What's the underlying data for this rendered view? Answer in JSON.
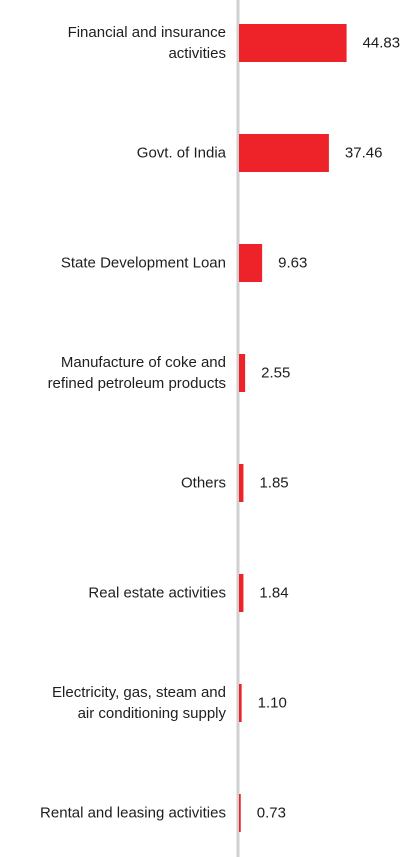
{
  "chart_data": {
    "type": "bar",
    "orientation": "horizontal",
    "categories": [
      [
        "Financial and insurance",
        "activities"
      ],
      [
        "Govt. of India"
      ],
      [
        "State Development Loan"
      ],
      [
        "Manufacture of coke and",
        "refined petroleum products"
      ],
      [
        "Others"
      ],
      [
        "Real estate activities"
      ],
      [
        "Electricity, gas, steam and",
        "air conditioning supply"
      ],
      [
        "Rental and leasing activities"
      ]
    ],
    "values": [
      44.83,
      37.46,
      9.63,
      2.55,
      1.85,
      1.84,
      1.1,
      0.73
    ],
    "value_labels": [
      "44.83",
      "37.46",
      "9.63",
      "2.55",
      "1.85",
      "1.84",
      "1.10",
      "0.73"
    ],
    "xlim": [
      0,
      50
    ],
    "grid": false,
    "legend": "none",
    "bar_color": "#ee2229",
    "axis_color": "#d0d0d0"
  }
}
